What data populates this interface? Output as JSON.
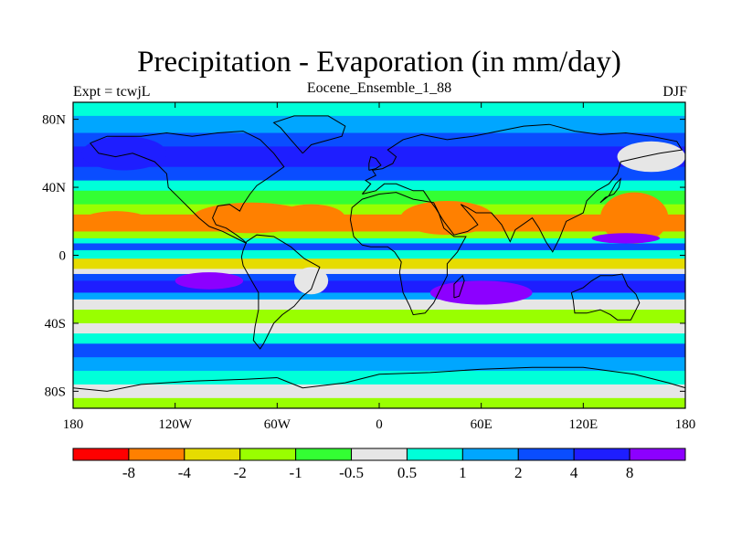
{
  "title": "Precipitation - Evaporation (in mm/day)",
  "left_label": "Expt = tcwjL",
  "center_label": "Eocene_Ensemble_1_88",
  "right_label": "DJF",
  "chart_data": {
    "type": "heatmap",
    "title": "Precipitation - Evaporation (in mm/day)",
    "subtitle": "Eocene_Ensemble_1_88",
    "experiment": "Expt = tcwjL",
    "season": "DJF",
    "x_ticks": [
      "180",
      "120W",
      "60W",
      "0",
      "60E",
      "120E",
      "180"
    ],
    "y_ticks": [
      "80N",
      "40N",
      "0",
      "40S",
      "80S"
    ],
    "xlim": [
      -180,
      180
    ],
    "ylim": [
      -90,
      90
    ],
    "colorbar": {
      "labels": [
        "-8",
        "-4",
        "-2",
        "-1",
        "-0.5",
        "0.5",
        "1",
        "2",
        "4",
        "8"
      ],
      "colors": [
        "#ff0000",
        "#ff8000",
        "#e6dc00",
        "#99ff00",
        "#33ff33",
        "#e6e6e6",
        "#00ffd9",
        "#00a6ff",
        "#0a4dff",
        "#1e1eff",
        "#8c00ff"
      ]
    },
    "zonal_bands": [
      {
        "lat_top": 90,
        "lat_bottom": 82,
        "level": 6
      },
      {
        "lat_top": 82,
        "lat_bottom": 72,
        "level": 7
      },
      {
        "lat_top": 72,
        "lat_bottom": 64,
        "level": 8
      },
      {
        "lat_top": 64,
        "lat_bottom": 52,
        "level": 9
      },
      {
        "lat_top": 52,
        "lat_bottom": 44,
        "level": 8
      },
      {
        "lat_top": 44,
        "lat_bottom": 38,
        "level": 6
      },
      {
        "lat_top": 38,
        "lat_bottom": 30,
        "level": 4
      },
      {
        "lat_top": 30,
        "lat_bottom": 24,
        "level": 3
      },
      {
        "lat_top": 24,
        "lat_bottom": 14,
        "level": 1
      },
      {
        "lat_top": 14,
        "lat_bottom": 10,
        "level": 3
      },
      {
        "lat_top": 10,
        "lat_bottom": 7,
        "level": 6
      },
      {
        "lat_top": 7,
        "lat_bottom": 3,
        "level": 8
      },
      {
        "lat_top": 3,
        "lat_bottom": -2,
        "level": 6
      },
      {
        "lat_top": -2,
        "lat_bottom": -8,
        "level": 2
      },
      {
        "lat_top": -8,
        "lat_bottom": -11,
        "level": 5
      },
      {
        "lat_top": -11,
        "lat_bottom": -15,
        "level": 8
      },
      {
        "lat_top": -15,
        "lat_bottom": -22,
        "level": 9
      },
      {
        "lat_top": -22,
        "lat_bottom": -26,
        "level": 7
      },
      {
        "lat_top": -26,
        "lat_bottom": -32,
        "level": 5
      },
      {
        "lat_top": -32,
        "lat_bottom": -40,
        "level": 3
      },
      {
        "lat_top": -40,
        "lat_bottom": -46,
        "level": 5
      },
      {
        "lat_top": -46,
        "lat_bottom": -52,
        "level": 6
      },
      {
        "lat_top": -52,
        "lat_bottom": -60,
        "level": 8
      },
      {
        "lat_top": -60,
        "lat_bottom": -68,
        "level": 7
      },
      {
        "lat_top": -68,
        "lat_bottom": -76,
        "level": 6
      },
      {
        "lat_top": -76,
        "lat_bottom": -84,
        "level": 5
      },
      {
        "lat_top": -84,
        "lat_bottom": -90,
        "level": 3
      }
    ],
    "regional_patches": [
      {
        "lon": -75,
        "lat": 22,
        "w": 70,
        "h": 18,
        "level": 1
      },
      {
        "lon": -40,
        "lat": 22,
        "w": 40,
        "h": 16,
        "level": 1
      },
      {
        "lon": 40,
        "lat": 22,
        "w": 55,
        "h": 20,
        "level": 1
      },
      {
        "lon": 150,
        "lat": 22,
        "w": 40,
        "h": 30,
        "level": 1
      },
      {
        "lon": -155,
        "lat": 20,
        "w": 40,
        "h": 12,
        "level": 1
      },
      {
        "lon": 60,
        "lat": -22,
        "w": 60,
        "h": 14,
        "level": 10
      },
      {
        "lon": -100,
        "lat": -15,
        "w": 40,
        "h": 10,
        "level": 10
      },
      {
        "lon": -40,
        "lat": -15,
        "w": 20,
        "h": 16,
        "level": 5
      },
      {
        "lon": 145,
        "lat": 10,
        "w": 40,
        "h": 6,
        "level": 10
      },
      {
        "lon": -150,
        "lat": 60,
        "w": 50,
        "h": 20,
        "level": 9
      },
      {
        "lon": 160,
        "lat": 58,
        "w": 40,
        "h": 18,
        "level": 5
      }
    ],
    "coastlines": [
      [
        [
          -170,
          66
        ],
        [
          -160,
          70
        ],
        [
          -140,
          70
        ],
        [
          -125,
          72
        ],
        [
          -110,
          70
        ],
        [
          -95,
          72
        ],
        [
          -80,
          73
        ],
        [
          -70,
          68
        ],
        [
          -62,
          60
        ],
        [
          -56,
          52
        ],
        [
          -66,
          45
        ],
        [
          -72,
          41
        ],
        [
          -76,
          36
        ],
        [
          -80,
          30
        ],
        [
          -82,
          26
        ],
        [
          -88,
          30
        ],
        [
          -95,
          29
        ],
        [
          -98,
          22
        ],
        [
          -96,
          18
        ],
        [
          -90,
          16
        ],
        [
          -84,
          12
        ],
        [
          -80,
          9
        ],
        [
          -78,
          7
        ],
        [
          -86,
          11
        ],
        [
          -92,
          14
        ],
        [
          -100,
          17
        ],
        [
          -106,
          22
        ],
        [
          -112,
          28
        ],
        [
          -118,
          34
        ],
        [
          -124,
          40
        ],
        [
          -125,
          48
        ],
        [
          -132,
          55
        ],
        [
          -145,
          60
        ],
        [
          -155,
          58
        ],
        [
          -165,
          60
        ],
        [
          -170,
          66
        ]
      ],
      [
        [
          -78,
          8
        ],
        [
          -72,
          12
        ],
        [
          -62,
          11
        ],
        [
          -52,
          5
        ],
        [
          -44,
          -2
        ],
        [
          -35,
          -7
        ],
        [
          -37,
          -12
        ],
        [
          -40,
          -20
        ],
        [
          -45,
          -24
        ],
        [
          -50,
          -30
        ],
        [
          -57,
          -35
        ],
        [
          -62,
          -40
        ],
        [
          -65,
          -46
        ],
        [
          -68,
          -52
        ],
        [
          -70,
          -55
        ],
        [
          -74,
          -50
        ],
        [
          -73,
          -42
        ],
        [
          -71,
          -32
        ],
        [
          -71,
          -22
        ],
        [
          -75,
          -15
        ],
        [
          -80,
          -6
        ],
        [
          -81,
          -1
        ],
        [
          -80,
          3
        ],
        [
          -78,
          8
        ]
      ],
      [
        [
          -10,
          36
        ],
        [
          -5,
          42
        ],
        [
          -8,
          44
        ],
        [
          -2,
          47
        ],
        [
          -4,
          50
        ],
        [
          2,
          51
        ],
        [
          8,
          54
        ],
        [
          10,
          58
        ],
        [
          5,
          62
        ],
        [
          14,
          68
        ],
        [
          25,
          71
        ],
        [
          40,
          68
        ],
        [
          55,
          70
        ],
        [
          70,
          73
        ],
        [
          85,
          76
        ],
        [
          100,
          77
        ],
        [
          115,
          73
        ],
        [
          130,
          71
        ],
        [
          145,
          72
        ],
        [
          160,
          70
        ],
        [
          175,
          67
        ],
        [
          178,
          62
        ],
        [
          165,
          60
        ],
        [
          155,
          58
        ],
        [
          142,
          55
        ],
        [
          140,
          48
        ],
        [
          135,
          42
        ],
        [
          128,
          38
        ],
        [
          122,
          32
        ],
        [
          120,
          25
        ],
        [
          110,
          20
        ],
        [
          106,
          10
        ],
        [
          102,
          2
        ],
        [
          98,
          8
        ],
        [
          94,
          16
        ],
        [
          90,
          22
        ],
        [
          80,
          15
        ],
        [
          77,
          8
        ],
        [
          72,
          18
        ],
        [
          66,
          25
        ],
        [
          57,
          25
        ],
        [
          52,
          28
        ],
        [
          48,
          30
        ],
        [
          55,
          22
        ],
        [
          58,
          18
        ],
        [
          52,
          14
        ],
        [
          44,
          12
        ],
        [
          38,
          20
        ],
        [
          33,
          28
        ],
        [
          30,
          32
        ],
        [
          26,
          38
        ],
        [
          20,
          38
        ],
        [
          15,
          40
        ],
        [
          10,
          42
        ],
        [
          3,
          42
        ],
        [
          -2,
          38
        ],
        [
          -10,
          36
        ]
      ],
      [
        [
          -17,
          21
        ],
        [
          -16,
          28
        ],
        [
          -10,
          33
        ],
        [
          0,
          36
        ],
        [
          10,
          37
        ],
        [
          20,
          33
        ],
        [
          32,
          31
        ],
        [
          35,
          25
        ],
        [
          38,
          16
        ],
        [
          44,
          11
        ],
        [
          51,
          11
        ],
        [
          46,
          2
        ],
        [
          40,
          -5
        ],
        [
          40,
          -12
        ],
        [
          35,
          -22
        ],
        [
          32,
          -28
        ],
        [
          27,
          -34
        ],
        [
          20,
          -35
        ],
        [
          18,
          -30
        ],
        [
          14,
          -22
        ],
        [
          12,
          -10
        ],
        [
          13,
          -4
        ],
        [
          9,
          2
        ],
        [
          5,
          5
        ],
        [
          -5,
          5
        ],
        [
          -10,
          6
        ],
        [
          -15,
          11
        ],
        [
          -17,
          21
        ]
      ],
      [
        [
          113,
          -22
        ],
        [
          114,
          -26
        ],
        [
          115,
          -34
        ],
        [
          122,
          -34
        ],
        [
          130,
          -32
        ],
        [
          136,
          -35
        ],
        [
          140,
          -38
        ],
        [
          148,
          -38
        ],
        [
          150,
          -34
        ],
        [
          153,
          -28
        ],
        [
          151,
          -23
        ],
        [
          146,
          -18
        ],
        [
          143,
          -11
        ],
        [
          137,
          -12
        ],
        [
          130,
          -12
        ],
        [
          125,
          -15
        ],
        [
          120,
          -19
        ],
        [
          113,
          -22
        ]
      ],
      [
        [
          -60,
          -72
        ],
        [
          -45,
          -78
        ],
        [
          -20,
          -75
        ],
        [
          0,
          -70
        ],
        [
          30,
          -69
        ],
        [
          60,
          -67
        ],
        [
          90,
          -66
        ],
        [
          120,
          -66
        ],
        [
          150,
          -70
        ],
        [
          170,
          -75
        ],
        [
          180,
          -78
        ]
      ],
      [
        [
          -180,
          -78
        ],
        [
          -160,
          -80
        ],
        [
          -140,
          -76
        ],
        [
          -110,
          -74
        ],
        [
          -80,
          -73
        ],
        [
          -60,
          -72
        ]
      ],
      [
        [
          -45,
          60
        ],
        [
          -40,
          65
        ],
        [
          -22,
          70
        ],
        [
          -20,
          76
        ],
        [
          -30,
          82
        ],
        [
          -50,
          82
        ],
        [
          -62,
          78
        ],
        [
          -58,
          75
        ],
        [
          -52,
          68
        ],
        [
          -45,
          60
        ]
      ],
      [
        [
          -6,
          50
        ],
        [
          -2,
          51
        ],
        [
          1,
          53
        ],
        [
          -2,
          57
        ],
        [
          -5,
          58
        ],
        [
          -6,
          54
        ],
        [
          -6,
          50
        ]
      ],
      [
        [
          130,
          31
        ],
        [
          133,
          34
        ],
        [
          138,
          36
        ],
        [
          141,
          40
        ],
        [
          142,
          45
        ],
        [
          139,
          42
        ],
        [
          135,
          35
        ],
        [
          130,
          31
        ]
      ],
      [
        [
          44,
          -25
        ],
        [
          47,
          -24
        ],
        [
          50,
          -15
        ],
        [
          49,
          -12
        ],
        [
          44,
          -17
        ],
        [
          44,
          -25
        ]
      ]
    ]
  }
}
